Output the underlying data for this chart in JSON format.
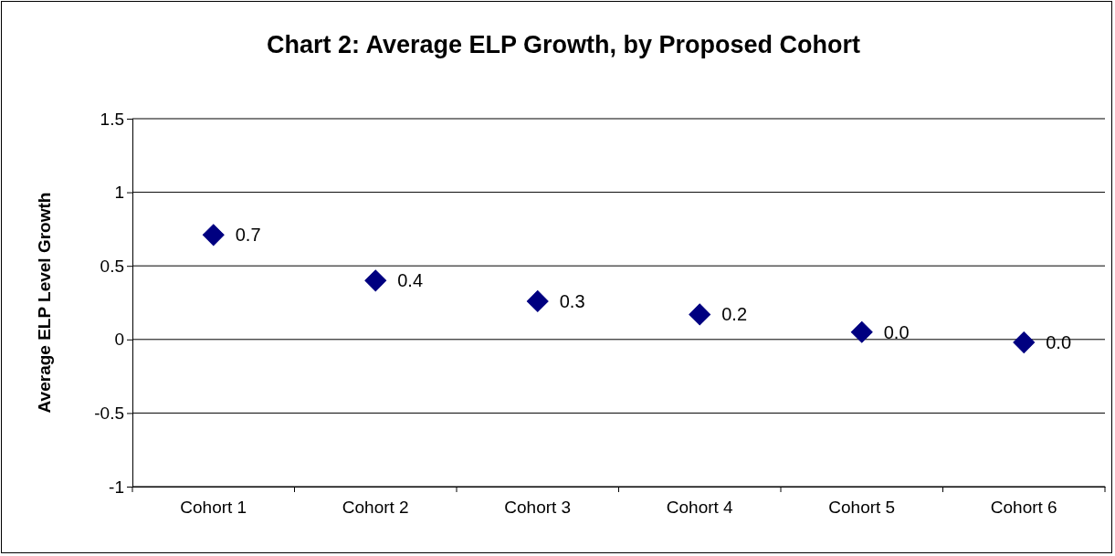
{
  "chart_data": {
    "type": "scatter",
    "title": "Chart 2: Average ELP Growth, by Proposed Cohort",
    "ylabel": "Average ELP Level Growth",
    "categories": [
      "Cohort 1",
      "Cohort 2",
      "Cohort 3",
      "Cohort 4",
      "Cohort 5",
      "Cohort 6"
    ],
    "series": [
      {
        "color": "#000080",
        "values": [
          0.71,
          0.4,
          0.26,
          0.17,
          0.05,
          -0.02
        ],
        "value_labels": [
          "0.7",
          "0.4",
          "0.3",
          "0.2",
          "0.0",
          "0.0"
        ]
      }
    ],
    "ylim": [
      -1,
      1.5
    ],
    "yticks": [
      -1,
      -0.5,
      0,
      0.5,
      1,
      1.5
    ],
    "grid": "y",
    "marker": "diamond"
  }
}
